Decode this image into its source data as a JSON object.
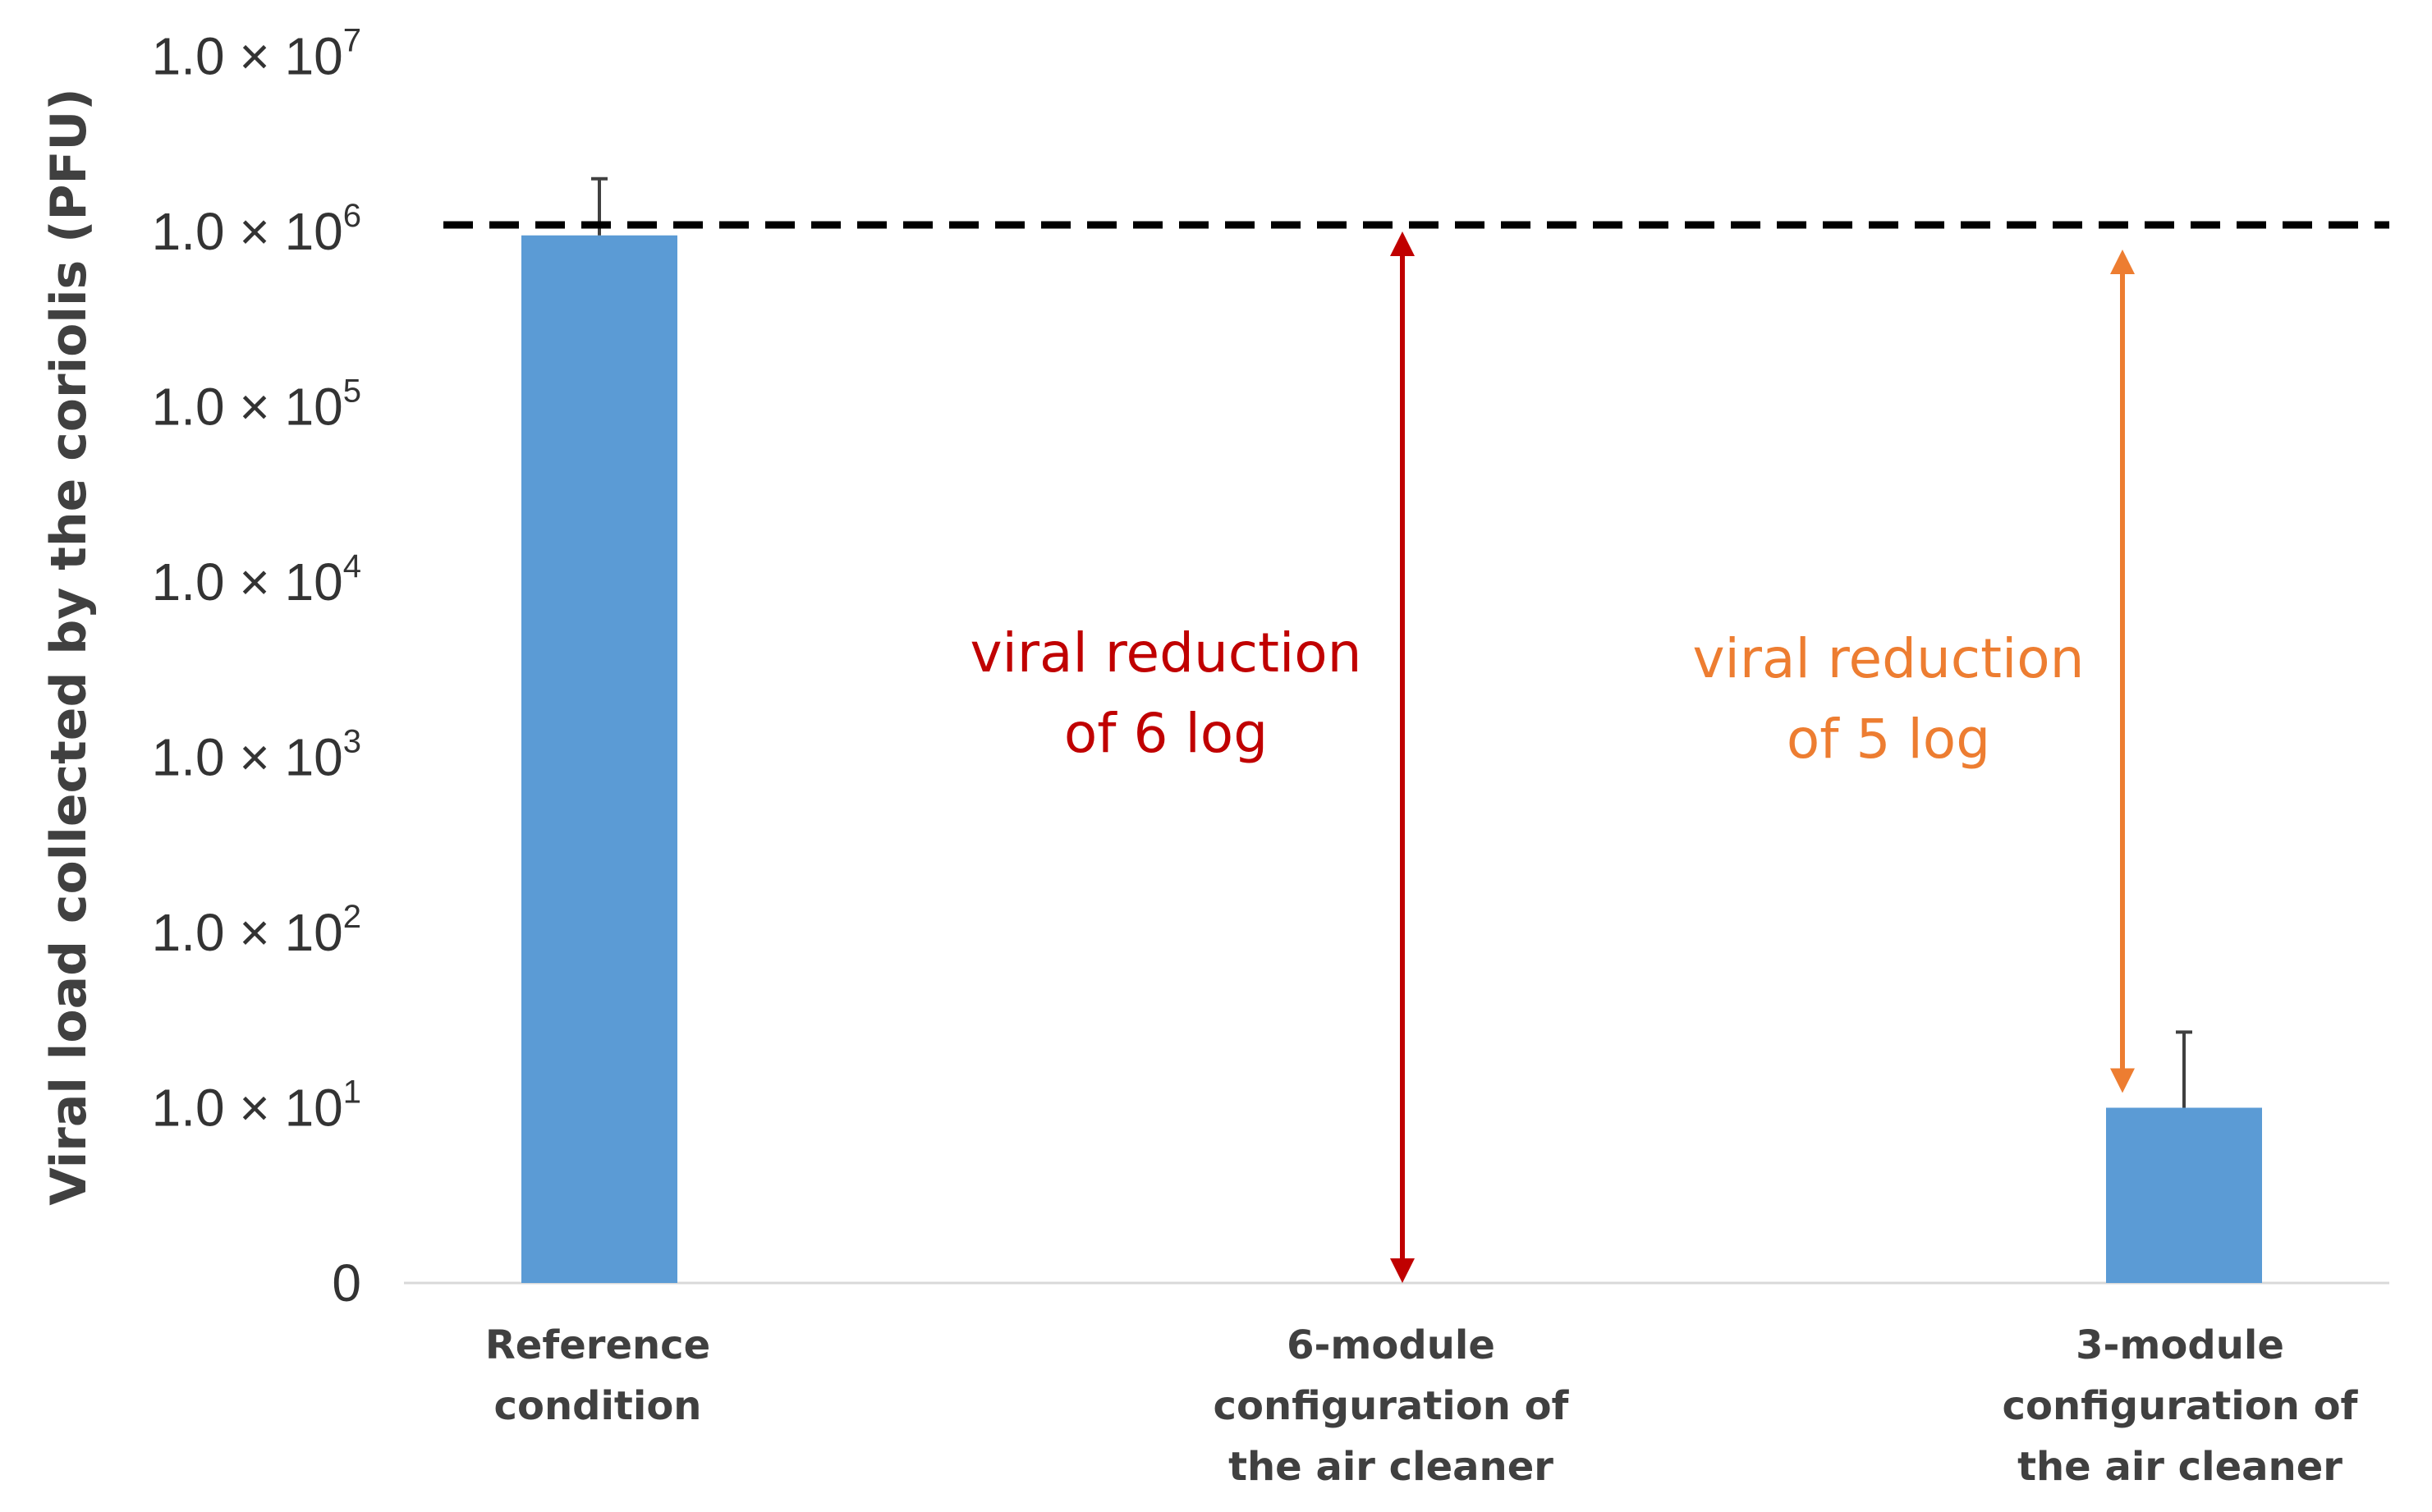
{
  "chart_data": {
    "type": "bar",
    "ylabel": "Viral load collected by the coriolis (PFU)",
    "y_scale": "log",
    "y_ticks": [
      {
        "label": "0",
        "value": 0
      },
      {
        "mant": "1.0 × 10",
        "exp": "1",
        "value": 10
      },
      {
        "mant": "1.0 × 10",
        "exp": "2",
        "value": 100
      },
      {
        "mant": "1.0 × 10",
        "exp": "3",
        "value": 1000
      },
      {
        "mant": "1.0 × 10",
        "exp": "4",
        "value": 10000
      },
      {
        "mant": "1.0 × 10",
        "exp": "5",
        "value": 100000
      },
      {
        "mant": "1.0 × 10",
        "exp": "6",
        "value": 1000000
      },
      {
        "mant": "1.0 × 10",
        "exp": "7",
        "value": 10000000
      }
    ],
    "categories": [
      {
        "lines": [
          "Reference",
          "condition"
        ]
      },
      {
        "lines": [
          "6-module",
          "configuration of",
          "the air cleaner"
        ]
      },
      {
        "lines": [
          "3-module",
          "configuration of",
          "the air cleaner"
        ]
      }
    ],
    "values": [
      950000,
      0,
      10
    ],
    "error_upper": [
      2000000,
      null,
      27
    ],
    "reference_line": 1000000,
    "bar_color": "#5B9BD5",
    "annotations": [
      {
        "lines": [
          "viral reduction",
          "of 6 log"
        ],
        "color": "#C00000",
        "category": 1,
        "from": 1000000,
        "to": 0
      },
      {
        "lines": [
          "viral reduction",
          "of 5 log"
        ],
        "color": "#ED7D31",
        "category": 2,
        "from": 1000000,
        "to": 10
      }
    ]
  }
}
